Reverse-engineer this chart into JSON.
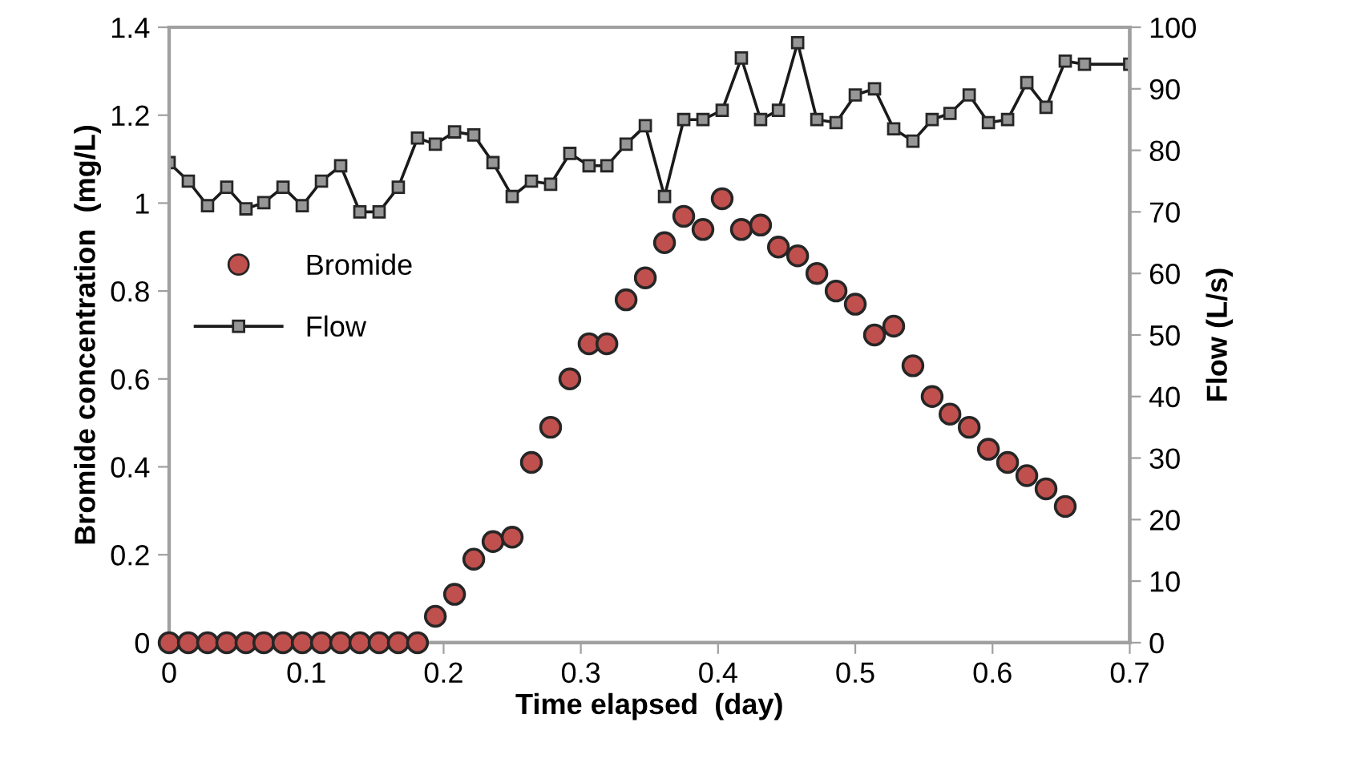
{
  "chart_data": {
    "type": "scatter",
    "xlabel": "Time elapsed  (day)",
    "ylabel": "Bromide concentration  (mg/L)",
    "y2label": "Flow (L/s)",
    "xlim": [
      0,
      0.7
    ],
    "xticks": [
      0,
      0.1,
      0.2,
      0.3,
      0.4,
      0.5,
      0.6,
      0.7
    ],
    "ylim": [
      0,
      1.4
    ],
    "yticks": [
      0,
      0.2,
      0.4,
      0.6,
      0.8,
      1,
      1.2,
      1.4
    ],
    "y2lim": [
      0,
      100
    ],
    "y2ticks": [
      0,
      10,
      20,
      30,
      40,
      50,
      60,
      70,
      80,
      90,
      100
    ],
    "grid": false,
    "legend": "left",
    "series": [
      {
        "name": "Bromide",
        "marker": "circle",
        "color": "#c0504d",
        "x": [
          0,
          0.014,
          0.028,
          0.042,
          0.056,
          0.069,
          0.083,
          0.097,
          0.111,
          0.125,
          0.139,
          0.153,
          0.167,
          0.181,
          0.194,
          0.208,
          0.222,
          0.236,
          0.25,
          0.264,
          0.278,
          0.292,
          0.306,
          0.319,
          0.333,
          0.347,
          0.361,
          0.375,
          0.389,
          0.403,
          0.417,
          0.431,
          0.444,
          0.458,
          0.472,
          0.486,
          0.5,
          0.514,
          0.528,
          0.542,
          0.556,
          0.569,
          0.583,
          0.597,
          0.611,
          0.625,
          0.639,
          0.653
        ],
        "values": [
          0,
          0,
          0,
          0,
          0,
          0,
          0,
          0,
          0,
          0,
          0,
          0,
          0,
          0,
          0.06,
          0.11,
          0.19,
          0.23,
          0.24,
          0.41,
          0.49,
          0.6,
          0.68,
          0.68,
          0.78,
          0.83,
          0.91,
          0.97,
          0.94,
          1.01,
          0.94,
          0.95,
          0.9,
          0.88,
          0.84,
          0.8,
          0.77,
          0.7,
          0.72,
          0.63,
          0.56,
          0.52,
          0.49,
          0.44,
          0.41,
          0.38,
          0.35,
          0.31
        ]
      },
      {
        "name": "Flow",
        "type": "line",
        "axis": "y2",
        "marker": "square",
        "line_style": "solid",
        "color": "#969696",
        "x": [
          0,
          0.014,
          0.028,
          0.042,
          0.056,
          0.069,
          0.083,
          0.097,
          0.111,
          0.125,
          0.139,
          0.153,
          0.167,
          0.181,
          0.194,
          0.208,
          0.222,
          0.236,
          0.25,
          0.264,
          0.278,
          0.292,
          0.306,
          0.319,
          0.333,
          0.347,
          0.361,
          0.375,
          0.389,
          0.403,
          0.417,
          0.431,
          0.444,
          0.458,
          0.472,
          0.486,
          0.5,
          0.514,
          0.528,
          0.542,
          0.556,
          0.569,
          0.583,
          0.597,
          0.611,
          0.625,
          0.639,
          0.653,
          0.667,
          0.7
        ],
        "values": [
          78,
          75,
          71,
          74,
          70.5,
          71.5,
          74,
          71,
          75,
          77.5,
          70,
          70,
          74,
          82,
          81,
          83,
          82.5,
          78,
          72.5,
          75,
          74.5,
          79.5,
          77.5,
          77.5,
          81,
          84,
          72.5,
          85,
          85,
          86.5,
          95,
          85,
          86.5,
          97.5,
          85,
          84.5,
          89,
          90,
          83.5,
          81.5,
          85,
          86,
          89,
          84.5,
          85,
          91,
          87,
          94.5,
          94,
          94
        ]
      }
    ]
  }
}
